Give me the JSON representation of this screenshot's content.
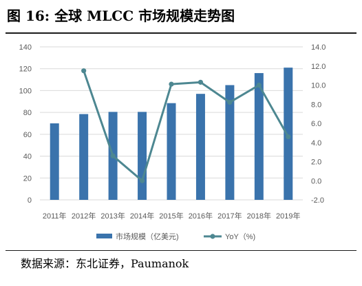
{
  "figure": {
    "title": "图  16:  全球 MLCC 市场规模走势图",
    "source": "数据来源：东北证券，Paumanok"
  },
  "chart_data": {
    "type": "bar",
    "categories": [
      "2011年",
      "2012年",
      "2013年",
      "2014年",
      "2015年",
      "2016年",
      "2017年",
      "2018年",
      "2019年"
    ],
    "series": [
      {
        "name": "市场规模（亿美元)",
        "type": "bar",
        "axis": "left",
        "color": "#3A73AC",
        "values": [
          70,
          78.5,
          80.5,
          80.5,
          88.5,
          97,
          105,
          116,
          121
        ]
      },
      {
        "name": "YoY（%)",
        "type": "line",
        "axis": "right",
        "color": "#4D8791",
        "values": [
          null,
          11.5,
          2.6,
          0.0,
          10.1,
          10.3,
          8.2,
          10.0,
          4.6
        ]
      }
    ],
    "y_left": {
      "min": 0,
      "max": 140,
      "ticks": [
        "0",
        "20",
        "40",
        "60",
        "80",
        "100",
        "120",
        "140"
      ]
    },
    "y_right": {
      "min": -2,
      "max": 14,
      "ticks": [
        "-2.0",
        "0.0",
        "2.0",
        "4.0",
        "6.0",
        "8.0",
        "10.0",
        "12.0",
        "14.0"
      ]
    },
    "grid": true,
    "legend_position": "bottom",
    "colors": {
      "axis_text": "#595959",
      "grid": "#D9D9D9"
    }
  }
}
